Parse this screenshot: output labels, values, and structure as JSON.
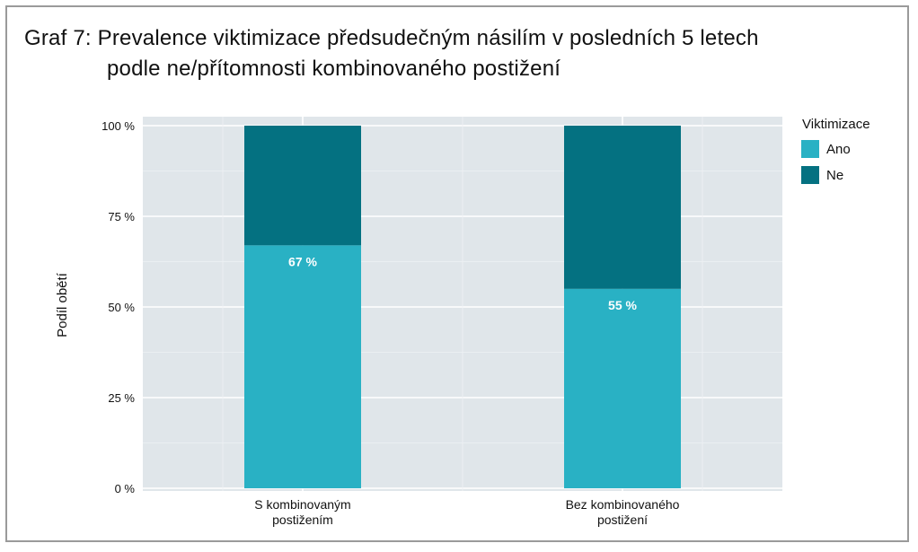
{
  "title_line1": "Graf 7: Prevalence viktimizace předsudečným násilím v posledních 5 letech",
  "title_line2": "podle ne/přítomnosti kombinovaného postižení",
  "chart_data": {
    "type": "bar",
    "stacked": true,
    "categories": [
      [
        "S kombinovaným",
        "postižením"
      ],
      [
        "Bez kombinovaného",
        "postižení"
      ]
    ],
    "series": [
      {
        "name": "Ano",
        "values": [
          67,
          55
        ],
        "color": "#29b1c4",
        "labels": [
          "67 %",
          "55 %"
        ]
      },
      {
        "name": "Ne",
        "values": [
          33,
          45
        ],
        "color": "#047181"
      }
    ],
    "ylabel": "Podíl obětí",
    "ylim": [
      0,
      100
    ],
    "yticks": [
      0,
      25,
      50,
      75,
      100
    ],
    "ytick_labels": [
      "0 %",
      "25 %",
      "50 %",
      "75 %",
      "100 %"
    ],
    "legend_title": "Viktimizace",
    "legend_position": "right",
    "grid": true,
    "panel_color": "#e0e6ea"
  }
}
